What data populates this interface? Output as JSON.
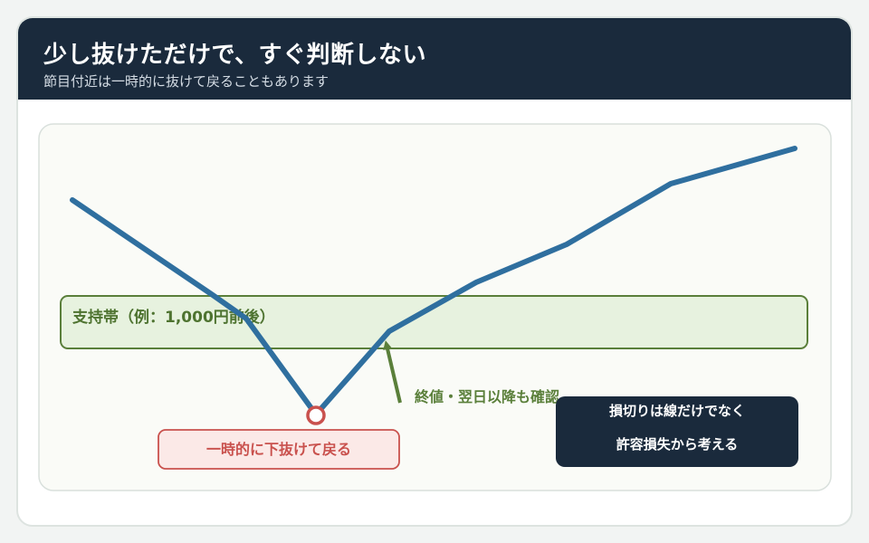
{
  "header": {
    "title": "少し抜けただけで、すぐ判断しない",
    "subtitle": "節目付近は一時的に抜けて戻ることもあります"
  },
  "diagram": {
    "support_zone_label": "支持帯（例：1,000円前後）",
    "dip_label": "一時的に下抜けて戻る",
    "arrow_label": "終値・翌日以降も確認",
    "note_line1": "損切りは線だけでなく",
    "note_line2": "許容損失から考える"
  },
  "colors": {
    "header_bg": "#1a2a3c",
    "price_line": "#2f6f9f",
    "support_fill": "#e7f2df",
    "support_stroke": "#5a7f3a",
    "dip_marker": "#c9514d",
    "dip_label_fill": "#fbe9e7",
    "note_bg": "#1a2a3c",
    "plot_bg": "#fafbf7"
  }
}
